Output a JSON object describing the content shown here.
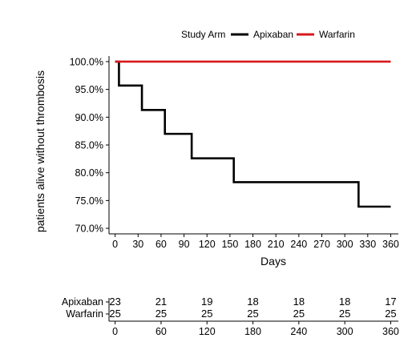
{
  "chart_data": {
    "type": "line",
    "step": true,
    "xlabel": "Days",
    "ylabel": "patients alive without thrombosis",
    "xlim": [
      -8,
      370
    ],
    "ylim": [
      69,
      101
    ],
    "x_ticks": [
      0,
      30,
      60,
      90,
      120,
      150,
      180,
      210,
      240,
      270,
      300,
      330,
      360
    ],
    "y_ticks": [
      70,
      75,
      80,
      85,
      90,
      95,
      100
    ],
    "y_tick_labels": [
      "70.0%",
      "75.0%",
      "80.0%",
      "85.0%",
      "90.0%",
      "95.0%",
      "100.0%"
    ],
    "grid": false,
    "legend": {
      "title": "Study Arm",
      "position": "top-right",
      "entries": [
        {
          "name": "Apixaban",
          "color": "#000000"
        },
        {
          "name": "Warfarin",
          "color": "#d7191c"
        }
      ]
    },
    "series": [
      {
        "name": "Apixaban",
        "color": "#000000",
        "x": [
          0,
          5,
          35,
          65,
          100,
          155,
          318,
          360
        ],
        "y": [
          100,
          95.7,
          91.3,
          87.0,
          82.6,
          78.3,
          73.9,
          73.9
        ]
      },
      {
        "name": "Warfarin",
        "color": "#d7191c",
        "x": [
          0,
          360
        ],
        "y": [
          100,
          100
        ]
      }
    ],
    "risk_table": {
      "times": [
        0,
        60,
        120,
        180,
        240,
        300,
        360
      ],
      "time_labels": [
        "0",
        "60",
        "120",
        "180",
        "240",
        "300",
        "360"
      ],
      "rows": [
        {
          "name": "Apixaban",
          "counts": [
            "23",
            "21",
            "19",
            "18",
            "18",
            "18",
            "17"
          ]
        },
        {
          "name": "Warfarin",
          "counts": [
            "25",
            "25",
            "25",
            "25",
            "25",
            "25",
            "25"
          ]
        }
      ]
    }
  }
}
